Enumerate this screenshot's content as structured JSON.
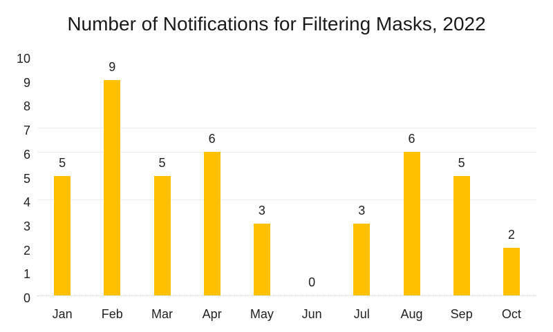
{
  "chart_data": {
    "type": "bar",
    "title": "Number of Notifications for Filtering Masks, 2022",
    "categories": [
      "Jan",
      "Feb",
      "Mar",
      "Apr",
      "May",
      "Jun",
      "Jul",
      "Aug",
      "Sep",
      "Oct"
    ],
    "values": [
      5,
      9,
      5,
      6,
      3,
      0,
      3,
      6,
      5,
      2
    ],
    "data_labels": [
      "5",
      "9",
      "5",
      "6",
      "3",
      "0",
      "3",
      "6",
      "5",
      "2"
    ],
    "xlabel": "",
    "ylabel": "",
    "ylim": [
      0,
      10
    ],
    "yticks": [
      0,
      1,
      2,
      3,
      4,
      5,
      6,
      7,
      8,
      9,
      10
    ],
    "visible_gridlines_at": [
      4,
      6,
      7
    ],
    "legend": "none",
    "grid": "partial",
    "bar_color": "#FFC000",
    "gridline_color": "#EAEAEA",
    "baseline_color": "#CFCFCF",
    "text_color": "#212121",
    "background_color": "#FFFFFF"
  }
}
